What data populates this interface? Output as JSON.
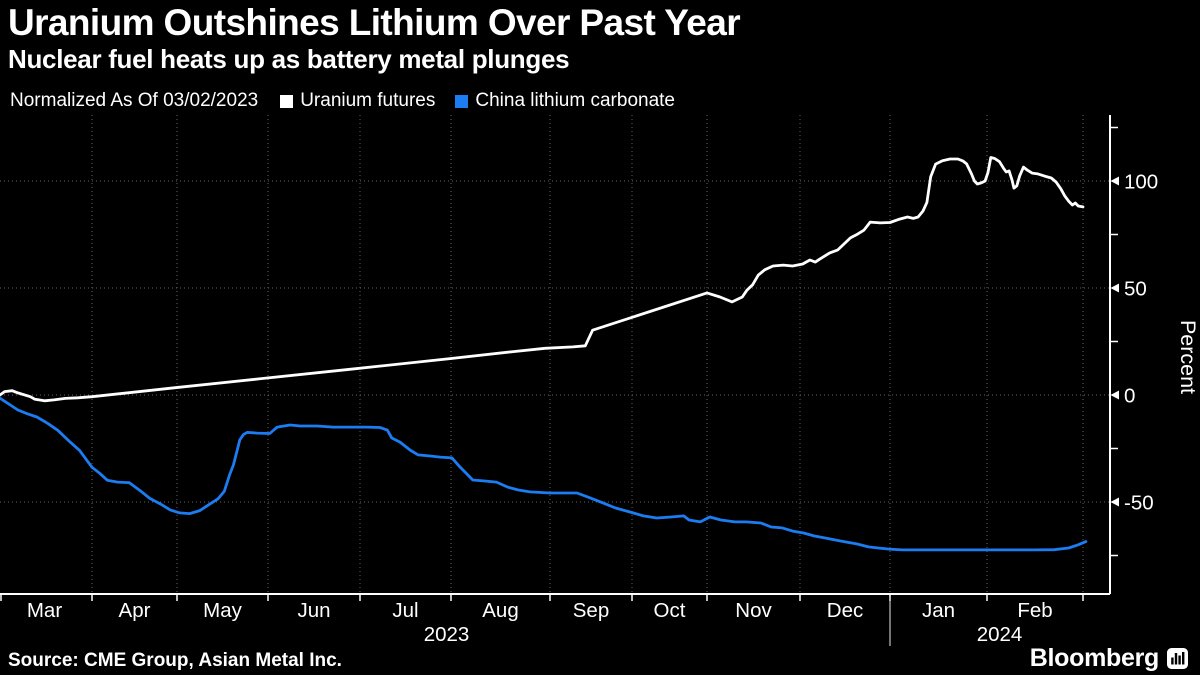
{
  "header": {
    "title": "Uranium Outshines Lithium Over Past Year",
    "subtitle": "Nuclear fuel heats up as battery metal plunges"
  },
  "legend": {
    "note": "Normalized As Of 03/02/2023",
    "items": [
      {
        "label": "Uranium futures",
        "color": "#ffffff"
      },
      {
        "label": "China lithium carbonate",
        "color": "#1c7df2"
      }
    ]
  },
  "chart_data": {
    "type": "line",
    "title": "Uranium Outshines Lithium Over Past Year",
    "xlabel": "",
    "ylabel": "Percent",
    "ylim": [
      -93,
      131
    ],
    "grid": "dotted, major y levels and month boundaries",
    "legend_position": "top",
    "y_ticks_major": [
      100,
      50,
      0,
      -50
    ],
    "y_ticks_minor": [
      125,
      75,
      25,
      -25,
      -75
    ],
    "x_axis": {
      "unit": "months since Mar 1 2023 (0 = Mar '23, 12 = Mar '24)",
      "month_labels": [
        "Mar",
        "Apr",
        "May",
        "Jun",
        "Jul",
        "Aug",
        "Sep",
        "Oct",
        "Nov",
        "Dec",
        "Jan",
        "Feb"
      ],
      "year_labels": [
        {
          "text": "2023",
          "anchor_month": 4.95
        },
        {
          "text": "2024",
          "anchor_month": 11.13
        }
      ],
      "year_divider_month": 10
    },
    "series": [
      {
        "name": "Uranium futures",
        "id": "uranium-series-line",
        "color": "#ffffff",
        "points": [
          [
            0.03,
            0
          ],
          [
            0.08,
            1.6
          ],
          [
            0.16,
            2.0
          ],
          [
            0.22,
            1.0
          ],
          [
            0.35,
            -0.8
          ],
          [
            0.4,
            -2.0
          ],
          [
            0.5,
            -2.7
          ],
          [
            0.6,
            -2.3
          ],
          [
            0.72,
            -1.6
          ],
          [
            0.85,
            -1.3
          ],
          [
            1.0,
            -0.8
          ],
          [
            1.98,
            3.4
          ],
          [
            2.9,
            7.5
          ],
          [
            3.89,
            12.0
          ],
          [
            4.99,
            17.0
          ],
          [
            5.63,
            20.3
          ],
          [
            5.95,
            21.8
          ],
          [
            6.28,
            22.5
          ],
          [
            6.43,
            23.0
          ],
          [
            6.52,
            30.3
          ],
          [
            7.24,
            39.0
          ],
          [
            8.0,
            47.7
          ],
          [
            8.14,
            45.8
          ],
          [
            8.27,
            43.5
          ],
          [
            8.38,
            45.8
          ],
          [
            8.43,
            49.0
          ],
          [
            8.49,
            51.5
          ],
          [
            8.55,
            56.0
          ],
          [
            8.62,
            58.5
          ],
          [
            8.71,
            60.3
          ],
          [
            8.82,
            60.7
          ],
          [
            8.92,
            60.3
          ],
          [
            9.03,
            61.2
          ],
          [
            9.11,
            63.1
          ],
          [
            9.17,
            62.1
          ],
          [
            9.22,
            63.5
          ],
          [
            9.33,
            66.4
          ],
          [
            9.42,
            67.8
          ],
          [
            9.56,
            73.4
          ],
          [
            9.64,
            75.2
          ],
          [
            9.71,
            77.0
          ],
          [
            9.78,
            80.8
          ],
          [
            9.89,
            80.4
          ],
          [
            10.0,
            80.6
          ],
          [
            10.1,
            82.2
          ],
          [
            10.18,
            83.2
          ],
          [
            10.24,
            82.5
          ],
          [
            10.29,
            83.2
          ],
          [
            10.34,
            86.0
          ],
          [
            10.38,
            90.0
          ],
          [
            10.42,
            102.0
          ],
          [
            10.47,
            107.9
          ],
          [
            10.54,
            109.5
          ],
          [
            10.62,
            110.3
          ],
          [
            10.7,
            110.3
          ],
          [
            10.75,
            109.4
          ],
          [
            10.79,
            108.0
          ],
          [
            10.84,
            103.3
          ],
          [
            10.87,
            100.0
          ],
          [
            10.9,
            98.6
          ],
          [
            10.94,
            99.1
          ],
          [
            10.98,
            100.0
          ],
          [
            11.01,
            104.0
          ],
          [
            11.04,
            111.0
          ],
          [
            11.08,
            110.5
          ],
          [
            11.13,
            109.0
          ],
          [
            11.17,
            106.1
          ],
          [
            11.2,
            104.2
          ],
          [
            11.23,
            104.7
          ],
          [
            11.26,
            100.5
          ],
          [
            11.28,
            96.7
          ],
          [
            11.31,
            97.7
          ],
          [
            11.34,
            102.3
          ],
          [
            11.38,
            106.5
          ],
          [
            11.42,
            105.1
          ],
          [
            11.47,
            103.7
          ],
          [
            11.53,
            103.3
          ],
          [
            11.6,
            102.3
          ],
          [
            11.67,
            101.4
          ],
          [
            11.72,
            99.5
          ],
          [
            11.77,
            96.3
          ],
          [
            11.81,
            93.0
          ],
          [
            11.85,
            90.6
          ],
          [
            11.89,
            88.8
          ],
          [
            11.92,
            89.7
          ],
          [
            11.95,
            88.3
          ],
          [
            12.0,
            87.9
          ]
        ]
      },
      {
        "name": "China lithium carbonate",
        "id": "lithium-series-line",
        "color": "#1c7df2",
        "points": [
          [
            0.03,
            -1.5
          ],
          [
            0.1,
            -3.5
          ],
          [
            0.22,
            -7.0
          ],
          [
            0.32,
            -8.8
          ],
          [
            0.42,
            -10.3
          ],
          [
            0.53,
            -13.2
          ],
          [
            0.64,
            -16.5
          ],
          [
            0.77,
            -22.0
          ],
          [
            0.87,
            -26.0
          ],
          [
            1.0,
            -33.8
          ],
          [
            1.09,
            -36.6
          ],
          [
            1.18,
            -39.8
          ],
          [
            1.3,
            -40.7
          ],
          [
            1.44,
            -41.0
          ],
          [
            1.56,
            -44.5
          ],
          [
            1.68,
            -48.3
          ],
          [
            1.8,
            -50.8
          ],
          [
            1.92,
            -53.7
          ],
          [
            2.03,
            -55.1
          ],
          [
            2.14,
            -55.4
          ],
          [
            2.25,
            -54.0
          ],
          [
            2.36,
            -51.0
          ],
          [
            2.45,
            -48.5
          ],
          [
            2.52,
            -45.0
          ],
          [
            2.58,
            -37.0
          ],
          [
            2.62,
            -32.7
          ],
          [
            2.66,
            -26.0
          ],
          [
            2.69,
            -21.0
          ],
          [
            2.73,
            -18.5
          ],
          [
            2.77,
            -17.5
          ],
          [
            2.88,
            -17.8
          ],
          [
            3.02,
            -18.0
          ],
          [
            3.1,
            -15.0
          ],
          [
            3.24,
            -14.0
          ],
          [
            3.35,
            -14.5
          ],
          [
            3.53,
            -14.5
          ],
          [
            3.71,
            -15.0
          ],
          [
            3.89,
            -15.0
          ],
          [
            4.08,
            -15.0
          ],
          [
            4.22,
            -15.2
          ],
          [
            4.3,
            -16.4
          ],
          [
            4.35,
            -20.1
          ],
          [
            4.44,
            -22.0
          ],
          [
            4.55,
            -25.7
          ],
          [
            4.64,
            -28.0
          ],
          [
            4.77,
            -28.5
          ],
          [
            4.88,
            -29.0
          ],
          [
            5.01,
            -29.4
          ],
          [
            5.09,
            -33.6
          ],
          [
            5.22,
            -39.7
          ],
          [
            5.34,
            -40.2
          ],
          [
            5.46,
            -40.7
          ],
          [
            5.57,
            -43.0
          ],
          [
            5.68,
            -44.4
          ],
          [
            5.8,
            -45.3
          ],
          [
            6.0,
            -45.8
          ],
          [
            6.33,
            -45.8
          ],
          [
            6.49,
            -48.1
          ],
          [
            6.65,
            -50.5
          ],
          [
            6.8,
            -52.8
          ],
          [
            6.98,
            -54.7
          ],
          [
            7.15,
            -56.5
          ],
          [
            7.33,
            -57.5
          ],
          [
            7.52,
            -57.0
          ],
          [
            7.69,
            -56.5
          ],
          [
            7.76,
            -58.4
          ],
          [
            7.91,
            -59.3
          ],
          [
            8.03,
            -57.0
          ],
          [
            8.15,
            -58.4
          ],
          [
            8.3,
            -59.3
          ],
          [
            8.42,
            -59.3
          ],
          [
            8.58,
            -59.8
          ],
          [
            8.69,
            -61.7
          ],
          [
            8.81,
            -62.1
          ],
          [
            8.92,
            -63.6
          ],
          [
            9.04,
            -64.5
          ],
          [
            9.16,
            -65.9
          ],
          [
            9.28,
            -66.8
          ],
          [
            9.4,
            -67.8
          ],
          [
            9.51,
            -68.7
          ],
          [
            9.63,
            -69.6
          ],
          [
            9.76,
            -71.0
          ],
          [
            9.87,
            -71.5
          ],
          [
            9.99,
            -72.0
          ],
          [
            10.13,
            -72.4
          ],
          [
            10.5,
            -72.4
          ],
          [
            11.0,
            -72.4
          ],
          [
            11.5,
            -72.4
          ],
          [
            11.7,
            -72.3
          ],
          [
            11.85,
            -71.5
          ],
          [
            11.95,
            -70.0
          ],
          [
            12.03,
            -68.5
          ]
        ]
      }
    ]
  },
  "footer": {
    "source": "Source: CME Group, Asian Metal Inc.",
    "brand": "Bloomberg"
  }
}
